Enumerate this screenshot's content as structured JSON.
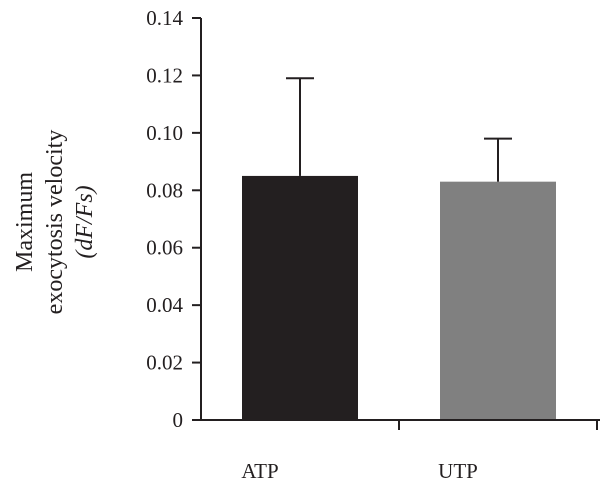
{
  "chart_data": {
    "type": "bar",
    "categories": [
      "ATP",
      "UTP"
    ],
    "values": [
      0.085,
      0.083
    ],
    "error_upper": [
      0.119,
      0.098
    ],
    "colors": [
      "#231f20",
      "#808080"
    ],
    "title": "",
    "xlabel": "",
    "ylabel": {
      "line1": "Maximum",
      "line2": "exocytosis velocity",
      "line3": "(dF/Fs)"
    },
    "ylim": [
      0,
      0.14
    ],
    "yticks": [
      "0",
      "0.02",
      "0.04",
      "0.06",
      "0.08",
      "0.10",
      "0.12",
      "0.14"
    ],
    "grid": false,
    "legend": "none"
  }
}
